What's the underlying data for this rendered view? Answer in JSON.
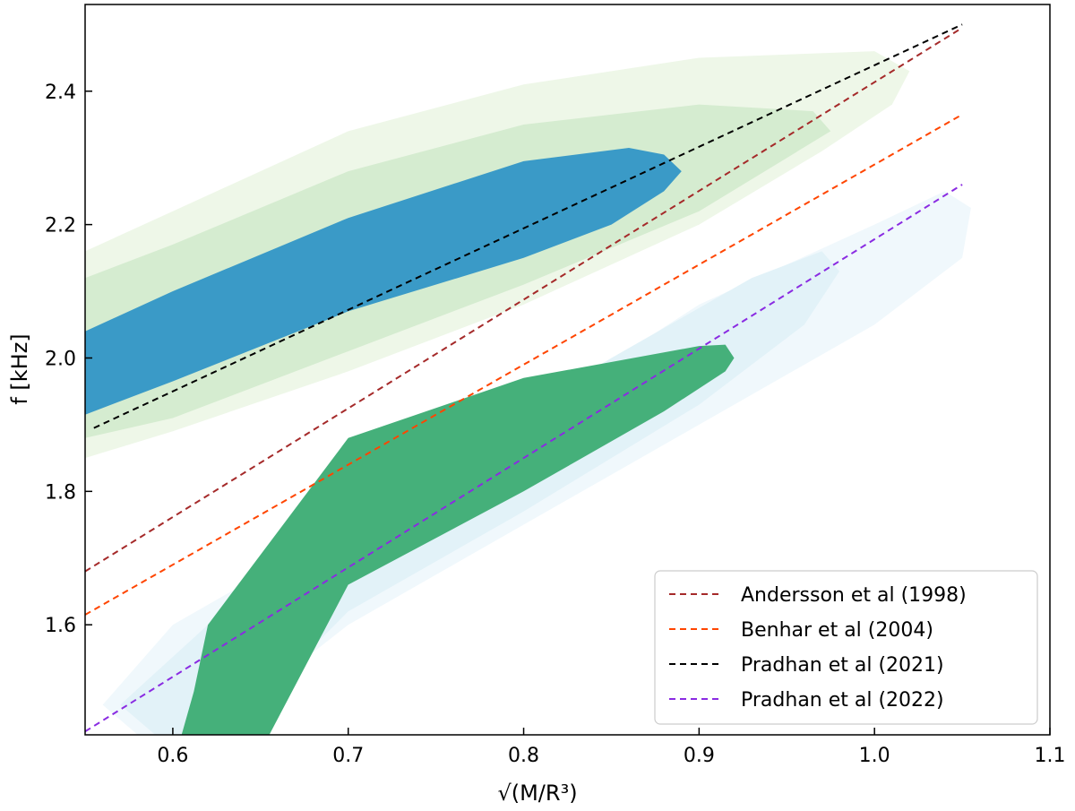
{
  "chart_data": {
    "type": "line",
    "title": "",
    "xlabel": "(M/R³)",
    "xlabel_root_symbol": "√",
    "ylabel": "f [kHz]",
    "xlim": [
      0.55,
      1.1
    ],
    "ylim": [
      1.435,
      2.53
    ],
    "xticks": [
      0.6,
      0.7,
      0.8,
      0.9,
      1.0,
      1.1
    ],
    "xtick_labels": [
      "0.6",
      "0.7",
      "0.8",
      "0.9",
      "1.0",
      "1.1"
    ],
    "yticks": [
      1.6,
      1.8,
      2.0,
      2.2,
      2.4
    ],
    "ytick_labels": [
      "1.6",
      "1.8",
      "2.0",
      "2.2",
      "2.4"
    ],
    "grid": false,
    "legend_position": "lower-right",
    "series": [
      {
        "name": "Andersson et al (1998)",
        "color": "#a52a2a",
        "style": "dashed",
        "x": [
          0.55,
          1.05
        ],
        "y": [
          1.68,
          2.495
        ]
      },
      {
        "name": "Benhar et al (2004)",
        "color": "#ff4500",
        "style": "dashed",
        "x": [
          0.55,
          1.05
        ],
        "y": [
          1.615,
          2.365
        ]
      },
      {
        "name": "Pradhan et al (2021)",
        "color": "#000000",
        "style": "dashed",
        "x": [
          0.555,
          1.05
        ],
        "y": [
          1.895,
          2.5
        ]
      },
      {
        "name": "Pradhan et al (2022)",
        "color": "#8a2be2",
        "style": "dashed",
        "x": [
          0.55,
          1.05
        ],
        "y": [
          1.44,
          2.26
        ]
      }
    ],
    "contours": [
      {
        "group": "upper",
        "level": "outer",
        "color": "#eef7e8",
        "polygon": [
          [
            0.55,
            1.85
          ],
          [
            0.6,
            1.89
          ],
          [
            0.7,
            1.98
          ],
          [
            0.8,
            2.08
          ],
          [
            0.9,
            2.2
          ],
          [
            0.97,
            2.31
          ],
          [
            1.01,
            2.38
          ],
          [
            1.02,
            2.43
          ],
          [
            1.0,
            2.46
          ],
          [
            0.9,
            2.45
          ],
          [
            0.8,
            2.41
          ],
          [
            0.7,
            2.34
          ],
          [
            0.6,
            2.22
          ],
          [
            0.55,
            2.16
          ]
        ]
      },
      {
        "group": "upper",
        "level": "middle",
        "color": "#d5ecd0",
        "polygon": [
          [
            0.55,
            1.88
          ],
          [
            0.6,
            1.91
          ],
          [
            0.7,
            2.01
          ],
          [
            0.8,
            2.11
          ],
          [
            0.9,
            2.22
          ],
          [
            0.95,
            2.3
          ],
          [
            0.975,
            2.34
          ],
          [
            0.965,
            2.37
          ],
          [
            0.9,
            2.38
          ],
          [
            0.8,
            2.35
          ],
          [
            0.7,
            2.28
          ],
          [
            0.6,
            2.17
          ],
          [
            0.55,
            2.12
          ]
        ]
      },
      {
        "group": "upper",
        "level": "inner",
        "color": "#3a9ac7",
        "polygon": [
          [
            0.55,
            1.915
          ],
          [
            0.6,
            1.965
          ],
          [
            0.7,
            2.07
          ],
          [
            0.8,
            2.15
          ],
          [
            0.85,
            2.2
          ],
          [
            0.88,
            2.25
          ],
          [
            0.89,
            2.28
          ],
          [
            0.88,
            2.305
          ],
          [
            0.86,
            2.315
          ],
          [
            0.8,
            2.295
          ],
          [
            0.7,
            2.21
          ],
          [
            0.6,
            2.1
          ],
          [
            0.55,
            2.04
          ]
        ]
      },
      {
        "group": "lower",
        "level": "outer",
        "color": "#f0f8fc",
        "polygon": [
          [
            0.58,
            1.435
          ],
          [
            0.62,
            1.435
          ],
          [
            0.7,
            1.6
          ],
          [
            0.8,
            1.75
          ],
          [
            0.9,
            1.9
          ],
          [
            1.0,
            2.05
          ],
          [
            1.05,
            2.15
          ],
          [
            1.055,
            2.225
          ],
          [
            1.04,
            2.25
          ],
          [
            1.0,
            2.2
          ],
          [
            0.9,
            2.08
          ],
          [
            0.8,
            1.91
          ],
          [
            0.7,
            1.75
          ],
          [
            0.6,
            1.6
          ],
          [
            0.56,
            1.48
          ]
        ]
      },
      {
        "group": "lower",
        "level": "middle",
        "color": "#e2f2f8",
        "polygon": [
          [
            0.59,
            1.435
          ],
          [
            0.63,
            1.435
          ],
          [
            0.7,
            1.62
          ],
          [
            0.8,
            1.77
          ],
          [
            0.9,
            1.93
          ],
          [
            0.96,
            2.05
          ],
          [
            0.98,
            2.13
          ],
          [
            0.97,
            2.16
          ],
          [
            0.93,
            2.12
          ],
          [
            0.85,
            2.0
          ],
          [
            0.78,
            1.89
          ],
          [
            0.7,
            1.77
          ],
          [
            0.62,
            1.6
          ],
          [
            0.57,
            1.48
          ]
        ]
      },
      {
        "group": "lower",
        "level": "inner",
        "color": "#45b07a",
        "polygon": [
          [
            0.605,
            1.435
          ],
          [
            0.655,
            1.435
          ],
          [
            0.7,
            1.66
          ],
          [
            0.8,
            1.8
          ],
          [
            0.88,
            1.92
          ],
          [
            0.915,
            1.98
          ],
          [
            0.92,
            2.0
          ],
          [
            0.915,
            2.02
          ],
          [
            0.9,
            2.018
          ],
          [
            0.8,
            1.97
          ],
          [
            0.7,
            1.88
          ],
          [
            0.62,
            1.6
          ],
          [
            0.612,
            1.5
          ]
        ]
      }
    ]
  }
}
